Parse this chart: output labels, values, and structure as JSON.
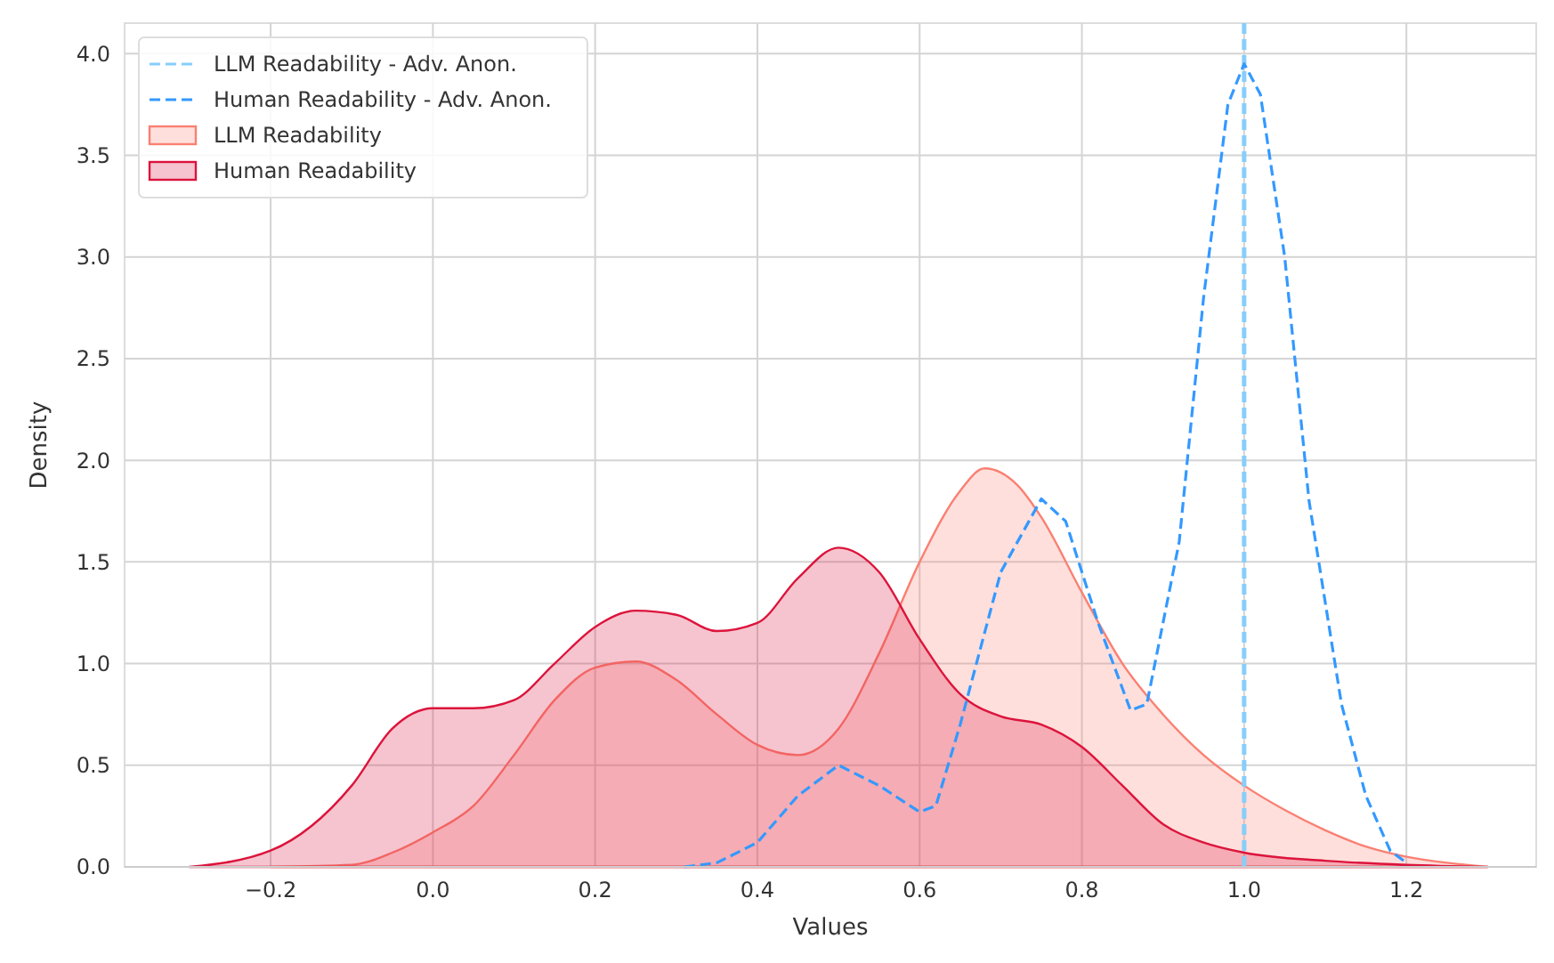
{
  "chart_data": {
    "type": "area",
    "xlabel": "Values",
    "ylabel": "Density",
    "xlim": [
      -0.38,
      1.36
    ],
    "ylim": [
      0,
      4.15
    ],
    "xticks": [
      {
        "value": -0.2,
        "label": "−0.2"
      },
      {
        "value": 0,
        "label": "0.0"
      },
      {
        "value": 0.2,
        "label": "0.2"
      },
      {
        "value": 0.4,
        "label": "0.4"
      },
      {
        "value": 0.6,
        "label": "0.6"
      },
      {
        "value": 0.8,
        "label": "0.8"
      },
      {
        "value": 1,
        "label": "1.0"
      },
      {
        "value": 1.2,
        "label": "1.2"
      }
    ],
    "yticks": [
      {
        "value": 0,
        "label": "0.0"
      },
      {
        "value": 0.5,
        "label": "0.5"
      },
      {
        "value": 1,
        "label": "1.0"
      },
      {
        "value": 1.5,
        "label": "1.5"
      },
      {
        "value": 2,
        "label": "2.0"
      },
      {
        "value": 2.5,
        "label": "2.5"
      },
      {
        "value": 3,
        "label": "3.0"
      },
      {
        "value": 3.5,
        "label": "3.5"
      },
      {
        "value": 4,
        "label": "4.0"
      }
    ],
    "grid": true,
    "legend": "top left",
    "series": [
      {
        "name": "LLM Readability - Adv. Anon.",
        "type": "line",
        "line_style": "dashed",
        "color": "#87cefa",
        "x": [
          1,
          1
        ],
        "values": [
          0,
          4.15
        ]
      },
      {
        "name": "Human Readability - Adv. Anon.",
        "type": "line",
        "line_style": "dashed",
        "color": "#3399ff",
        "x": [
          0.31,
          0.35,
          0.4,
          0.45,
          0.5,
          0.55,
          0.6,
          0.62,
          0.65,
          0.7,
          0.75,
          0.78,
          0.82,
          0.86,
          0.88,
          0.92,
          0.95,
          0.98,
          1.0,
          1.02,
          1.05,
          1.08,
          1.12,
          1.15,
          1.18,
          1.2
        ],
        "values": [
          0,
          0.02,
          0.12,
          0.35,
          0.5,
          0.4,
          0.27,
          0.3,
          0.7,
          1.45,
          1.81,
          1.7,
          1.2,
          0.77,
          0.8,
          1.6,
          2.8,
          3.75,
          3.95,
          3.8,
          3.0,
          1.8,
          0.8,
          0.35,
          0.08,
          0.02
        ]
      },
      {
        "name": "LLM Readability",
        "color": "#fa8072",
        "x": [
          -0.2,
          -0.1,
          -0.05,
          0,
          0.05,
          0.1,
          0.15,
          0.2,
          0.25,
          0.3,
          0.35,
          0.4,
          0.45,
          0.5,
          0.55,
          0.6,
          0.65,
          0.68,
          0.72,
          0.75,
          0.8,
          0.85,
          0.9,
          0.95,
          1.0,
          1.05,
          1.1,
          1.15,
          1.2,
          1.25,
          1.3
        ],
        "values": [
          0,
          0.01,
          0.07,
          0.17,
          0.3,
          0.55,
          0.82,
          0.98,
          1.01,
          0.92,
          0.75,
          0.6,
          0.55,
          0.68,
          1.05,
          1.5,
          1.85,
          1.96,
          1.88,
          1.72,
          1.35,
          1.0,
          0.75,
          0.55,
          0.4,
          0.28,
          0.18,
          0.1,
          0.05,
          0.02,
          0
        ]
      },
      {
        "name": "Human Readability",
        "color": "#dc143c",
        "x": [
          -0.3,
          -0.2,
          -0.1,
          -0.05,
          0,
          0.05,
          0.1,
          0.15,
          0.2,
          0.25,
          0.3,
          0.35,
          0.4,
          0.45,
          0.5,
          0.55,
          0.6,
          0.65,
          0.7,
          0.75,
          0.8,
          0.85,
          0.9,
          0.95,
          1.0,
          1.1,
          1.2,
          1.3
        ],
        "values": [
          0,
          0.08,
          0.4,
          0.68,
          0.78,
          0.78,
          0.82,
          1.0,
          1.18,
          1.26,
          1.24,
          1.16,
          1.2,
          1.42,
          1.57,
          1.45,
          1.12,
          0.85,
          0.74,
          0.7,
          0.59,
          0.4,
          0.21,
          0.12,
          0.07,
          0.03,
          0.01,
          0
        ]
      }
    ]
  }
}
